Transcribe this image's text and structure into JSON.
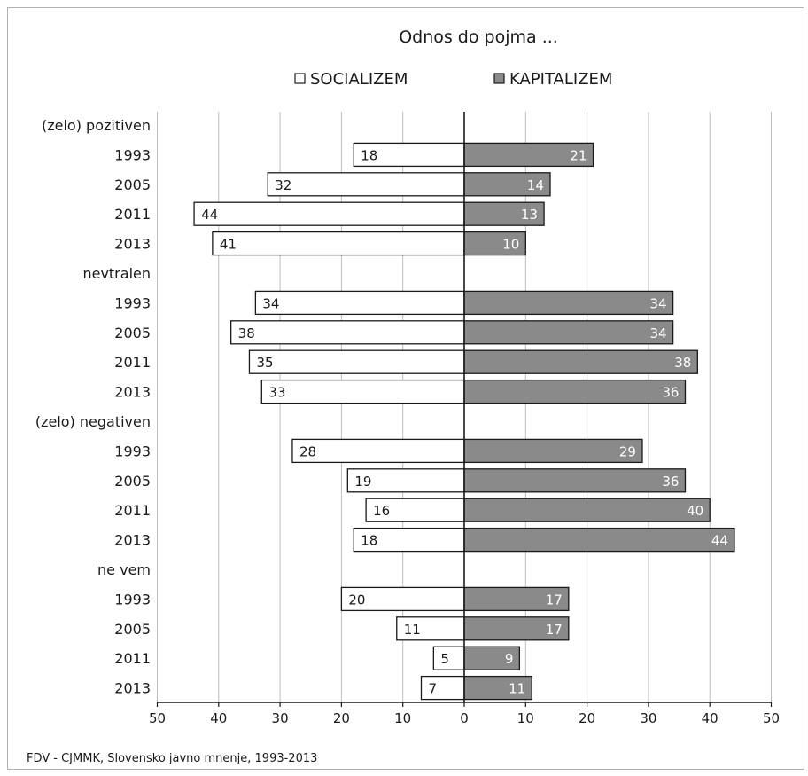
{
  "chart_data": {
    "type": "bar",
    "orientation": "horizontal-diverging",
    "title": "Odnos do pojma ...",
    "legend_placement": "top-center",
    "grid": true,
    "xlim": [
      -50,
      50
    ],
    "xticks": [
      "50",
      "40",
      "30",
      "20",
      "10",
      "0",
      "10",
      "20",
      "30",
      "40",
      "50"
    ],
    "series": [
      {
        "name": "SOCIALIZEM",
        "color": "#ffffff"
      },
      {
        "name": "KAPITALIZEM",
        "color": "#8a8a8a"
      }
    ],
    "groups": [
      {
        "label": "(zelo) pozitiven",
        "rows": [
          {
            "year": "1993",
            "socializem": 18,
            "kapitalizem": 21
          },
          {
            "year": "2005",
            "socializem": 32,
            "kapitalizem": 14
          },
          {
            "year": "2011",
            "socializem": 44,
            "kapitalizem": 13
          },
          {
            "year": "2013",
            "socializem": 41,
            "kapitalizem": 10
          }
        ]
      },
      {
        "label": "nevtralen",
        "rows": [
          {
            "year": "1993",
            "socializem": 34,
            "kapitalizem": 34
          },
          {
            "year": "2005",
            "socializem": 38,
            "kapitalizem": 34
          },
          {
            "year": "2011",
            "socializem": 35,
            "kapitalizem": 38
          },
          {
            "year": "2013",
            "socializem": 33,
            "kapitalizem": 36
          }
        ]
      },
      {
        "label": "(zelo) negativen",
        "rows": [
          {
            "year": "1993",
            "socializem": 28,
            "kapitalizem": 29
          },
          {
            "year": "2005",
            "socializem": 19,
            "kapitalizem": 36
          },
          {
            "year": "2011",
            "socializem": 16,
            "kapitalizem": 40
          },
          {
            "year": "2013",
            "socializem": 18,
            "kapitalizem": 44
          }
        ]
      },
      {
        "label": "ne vem",
        "rows": [
          {
            "year": "1993",
            "socializem": 20,
            "kapitalizem": 17
          },
          {
            "year": "2005",
            "socializem": 11,
            "kapitalizem": 17
          },
          {
            "year": "2011",
            "socializem": 5,
            "kapitalizem": 9
          },
          {
            "year": "2013",
            "socializem": 7,
            "kapitalizem": 11
          }
        ]
      }
    ],
    "source": "FDV - CJMMK, Slovensko javno mnenje, 1993-2013"
  }
}
